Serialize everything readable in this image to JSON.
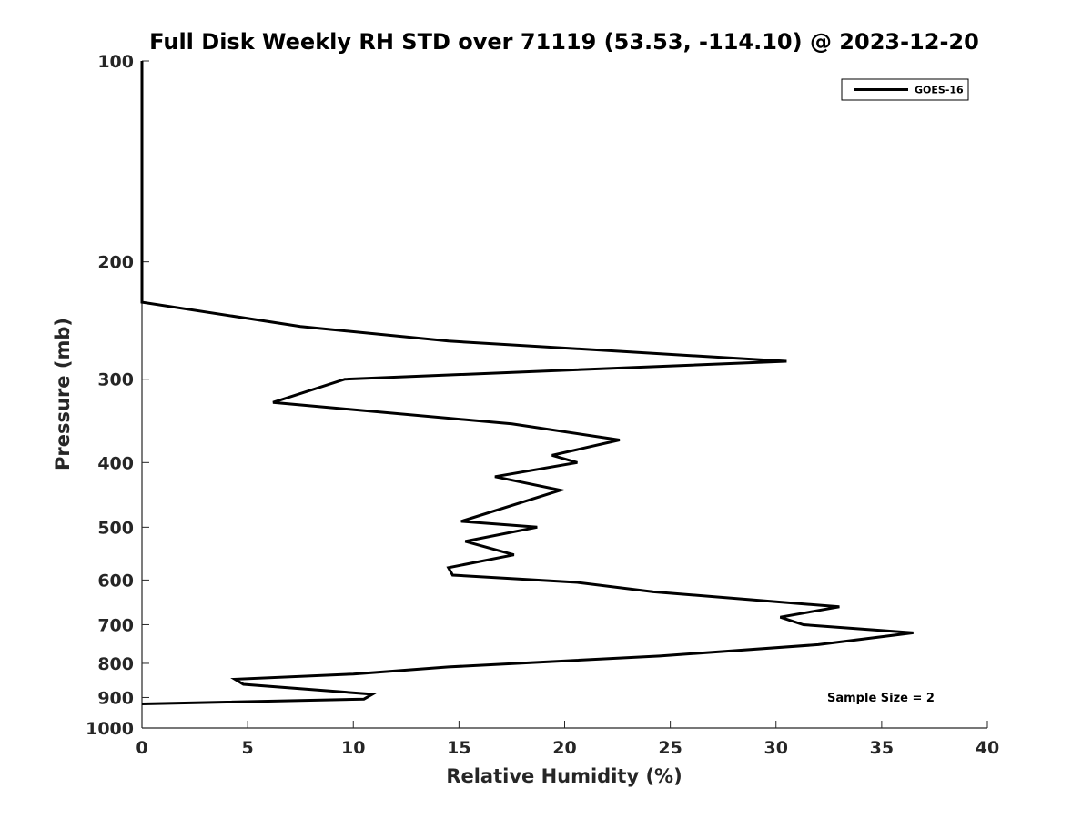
{
  "chart_data": {
    "type": "line",
    "title": "Full Disk Weekly RH STD over 71119 (53.53, -114.10) @ 2023-12-20",
    "xlabel": "Relative Humidity (%)",
    "ylabel": "Pressure (mb)",
    "xlim": [
      0,
      40
    ],
    "ylim": [
      100,
      1000
    ],
    "yscale": "log",
    "yreversed": true,
    "grid": false,
    "legend_position": "top-right",
    "x_ticks": [
      0,
      5,
      10,
      15,
      20,
      25,
      30,
      35,
      40
    ],
    "y_ticks": [
      100,
      200,
      300,
      400,
      500,
      600,
      700,
      800,
      900,
      1000
    ],
    "line_color": "#000000",
    "series": [
      {
        "name": "GOES-16",
        "points": [
          [
            0,
            100
          ],
          [
            0,
            150
          ],
          [
            0,
            200
          ],
          [
            0,
            230
          ],
          [
            7.5,
            250
          ],
          [
            14.5,
            263
          ],
          [
            30.5,
            282
          ],
          [
            9.6,
            300
          ],
          [
            6.2,
            325
          ],
          [
            17.5,
            350
          ],
          [
            22.6,
            370
          ],
          [
            19.4,
            390
          ],
          [
            20.6,
            400
          ],
          [
            16.7,
            420
          ],
          [
            19.8,
            440
          ],
          [
            15.1,
            490
          ],
          [
            18.7,
            500
          ],
          [
            15.3,
            525
          ],
          [
            17.6,
            550
          ],
          [
            14.5,
            575
          ],
          [
            14.7,
            590
          ],
          [
            20.6,
            605
          ],
          [
            24.2,
            625
          ],
          [
            33,
            658
          ],
          [
            30.2,
            682
          ],
          [
            31.3,
            700
          ],
          [
            36.5,
            720
          ],
          [
            32,
            750
          ],
          [
            24.5,
            780
          ],
          [
            14.5,
            810
          ],
          [
            10,
            830
          ],
          [
            4.4,
            845
          ],
          [
            4.8,
            860
          ],
          [
            10.9,
            890
          ],
          [
            10.5,
            905
          ],
          [
            0,
            920
          ]
        ]
      }
    ],
    "annotations": [
      "Sample Size = 2"
    ]
  }
}
